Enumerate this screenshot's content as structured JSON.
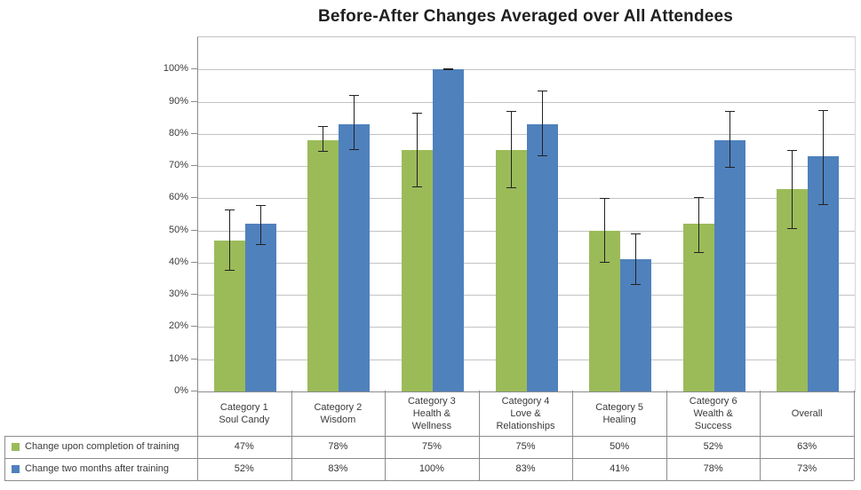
{
  "chart_data": {
    "type": "bar",
    "title": "Before-After Changes Averaged over All Attendees",
    "categories": [
      {
        "lines": [
          "Category 1",
          "Soul Candy"
        ]
      },
      {
        "lines": [
          "Category 2",
          "Wisdom"
        ]
      },
      {
        "lines": [
          "Category 3",
          "Health &",
          "Wellness"
        ]
      },
      {
        "lines": [
          "Category 4",
          "Love &",
          "Relationships"
        ]
      },
      {
        "lines": [
          "Category 5",
          "Healing"
        ]
      },
      {
        "lines": [
          "Category 6",
          "Wealth &",
          "Success"
        ]
      },
      {
        "lines": [
          "Overall"
        ]
      }
    ],
    "series": [
      {
        "name": "Change upon completion of training",
        "color": "#9BBB59",
        "values": [
          47,
          78,
          75,
          75,
          50,
          52,
          63
        ],
        "display": [
          "47%",
          "78%",
          "75%",
          "75%",
          "50%",
          "52%",
          "63%"
        ],
        "error_lo": [
          37.5,
          74.5,
          63.5,
          63,
          40,
          43,
          50.5
        ],
        "error_hi": [
          56.5,
          82.5,
          86.5,
          87,
          60,
          60.5,
          75
        ]
      },
      {
        "name": "Change two months after training",
        "color": "#4F81BD",
        "values": [
          52,
          83,
          100,
          83,
          41,
          78,
          73
        ],
        "display": [
          "52%",
          "83%",
          "100%",
          "83%",
          "41%",
          "78%",
          "73%"
        ],
        "error_lo": [
          45.5,
          75,
          100,
          73,
          33,
          69.5,
          58
        ],
        "error_hi": [
          58,
          92,
          100,
          93.5,
          49,
          87,
          87.5
        ]
      }
    ],
    "axis": {
      "min": 0,
      "max": 100,
      "step": 10,
      "plot_max": 110,
      "tick_labels": [
        "0%",
        "10%",
        "20%",
        "30%",
        "40%",
        "50%",
        "60%",
        "70%",
        "80%",
        "90%",
        "100%"
      ]
    },
    "grid": true,
    "legend_position": "bottom-table",
    "error_bar_color": "#222222",
    "grid_color": "#c3c3c3",
    "border_color": "#8c8c8c"
  }
}
